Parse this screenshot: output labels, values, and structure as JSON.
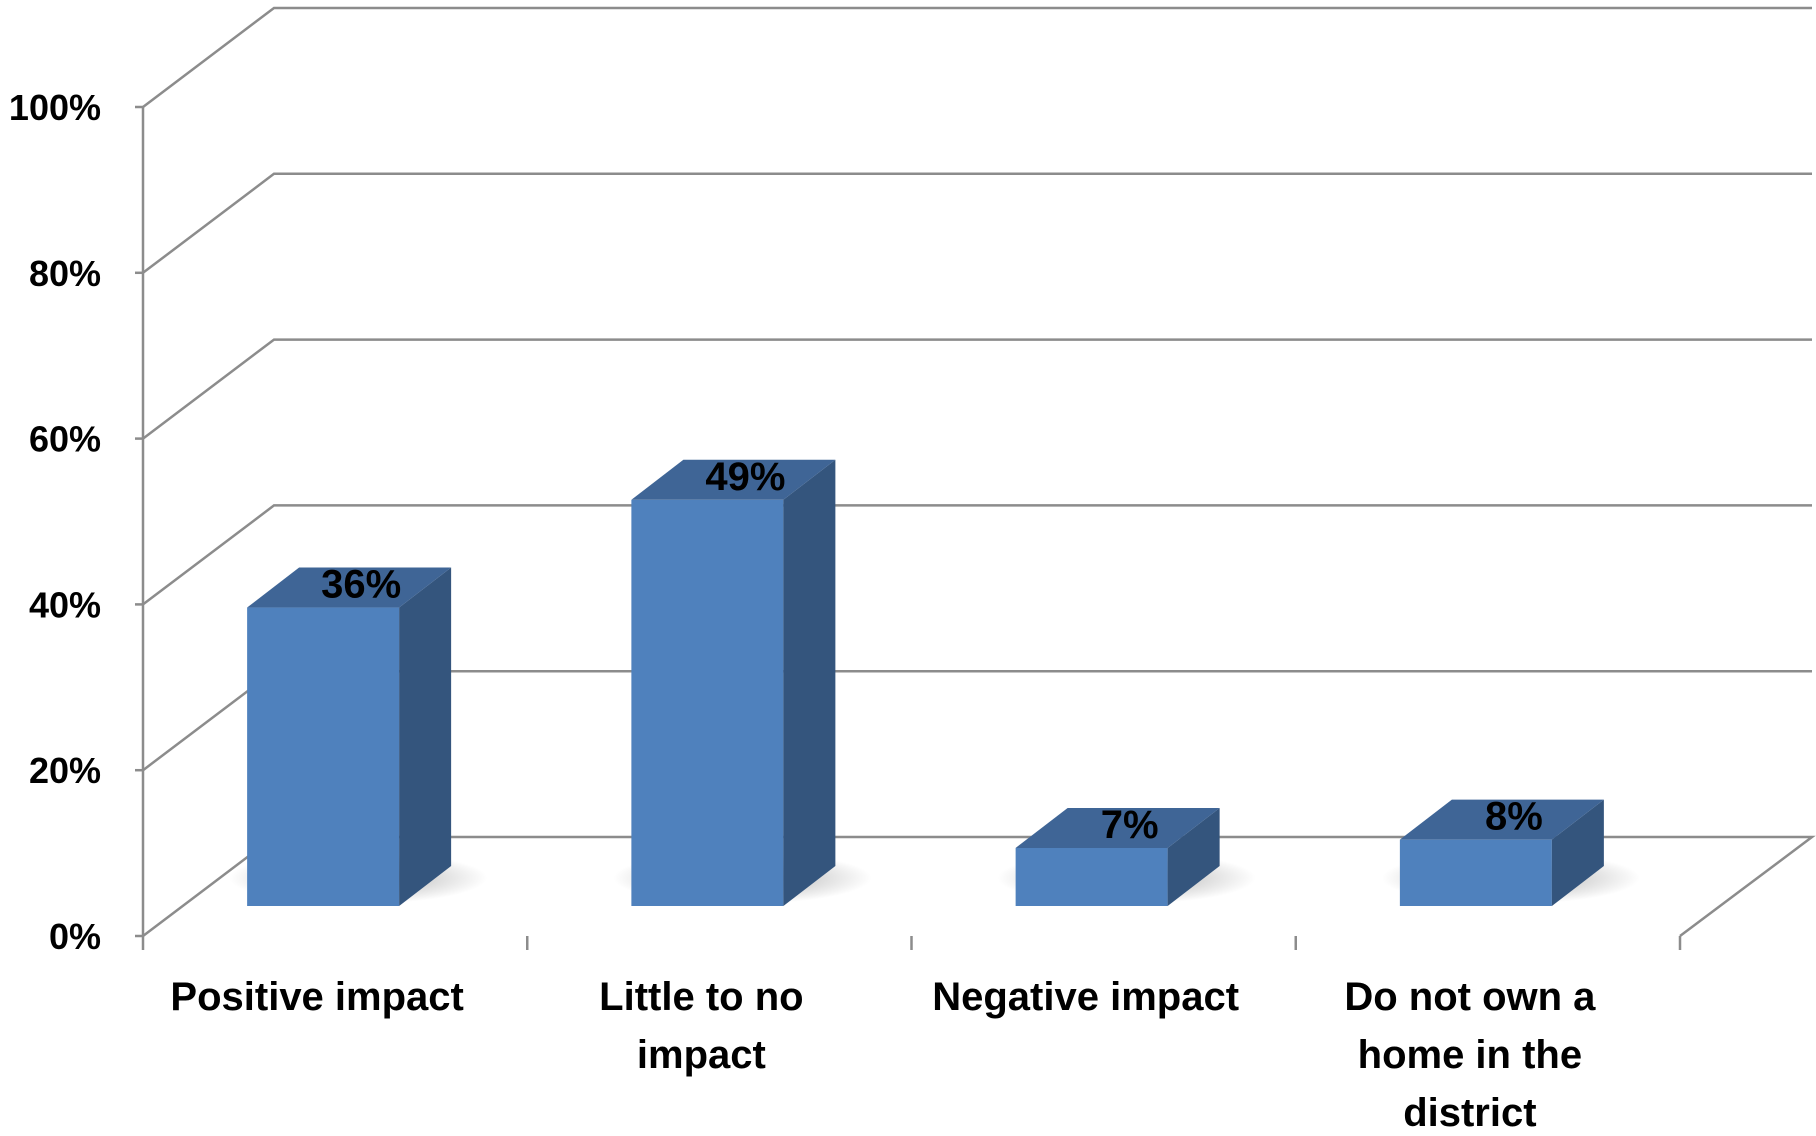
{
  "chart_data": {
    "type": "bar",
    "style": "3d-column",
    "categories": [
      [
        "Positive impact"
      ],
      [
        "Little to no",
        "impact"
      ],
      [
        "Negative impact"
      ],
      [
        "Do not own a",
        "home in the",
        "district"
      ]
    ],
    "values": [
      36,
      49,
      7,
      8
    ],
    "data_labels": [
      "36%",
      "49%",
      "7%",
      "8%"
    ],
    "y_ticks": [
      "0%",
      "20%",
      "40%",
      "60%",
      "80%",
      "100%"
    ],
    "ylim": [
      0,
      100
    ],
    "title": "",
    "xlabel": "",
    "ylabel": "",
    "grid": true,
    "legend": "none",
    "colors": {
      "bar_front": "#4f81bd",
      "bar_side": "#34557d",
      "bar_top": "#3f6596",
      "gridline": "#8c8c8c",
      "text": "#000000"
    }
  }
}
